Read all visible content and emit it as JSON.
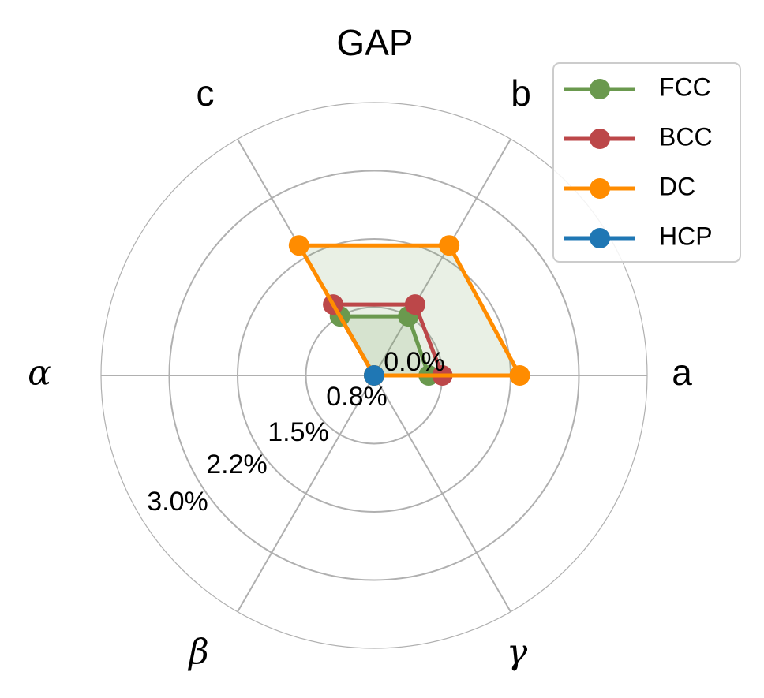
{
  "chart_data": {
    "type": "radar",
    "title": "GAP",
    "categories": [
      "a",
      "b",
      "c",
      "α",
      "β",
      "γ"
    ],
    "radial_ticks": [
      "0.0%",
      "0.8%",
      "1.5%",
      "2.2%",
      "3.0%"
    ],
    "r_range": [
      0,
      3.0
    ],
    "grid": true,
    "legend_position": "top-right",
    "series": [
      {
        "name": "FCC",
        "values": [
          0.6,
          0.75,
          0.75,
          0,
          0,
          0
        ],
        "color": "#6a994e",
        "filled": true
      },
      {
        "name": "BCC",
        "values": [
          0.75,
          0.9,
          0.9,
          0,
          0,
          0
        ],
        "color": "#bc4749",
        "filled": false
      },
      {
        "name": "DC",
        "values": [
          1.6,
          1.65,
          1.65,
          0,
          0,
          0
        ],
        "color": "#ff8c00",
        "filled": true
      },
      {
        "name": "HCP",
        "values": [
          0,
          0,
          0,
          0,
          0,
          0
        ],
        "color": "#1f77b4",
        "filled": false
      }
    ]
  }
}
